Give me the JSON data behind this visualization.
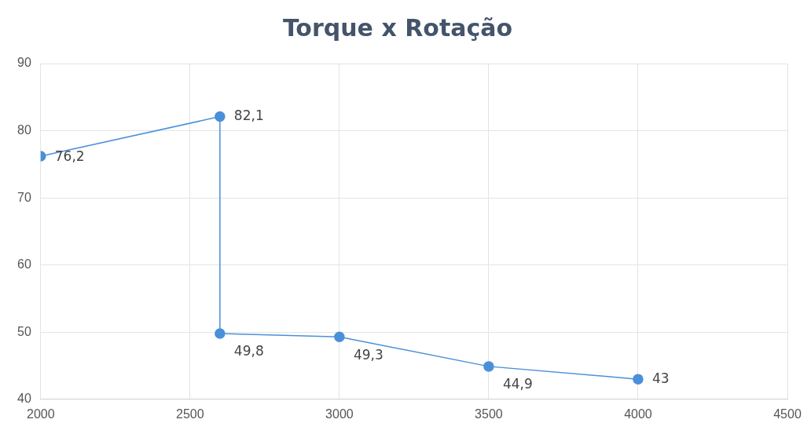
{
  "chart_data": {
    "type": "line",
    "title": "Torque x Rotação",
    "x": [
      2000,
      2600,
      2600,
      3000,
      3500,
      4000
    ],
    "series": [
      {
        "color": "#4a90d9",
        "values": [
          76.2,
          82.1,
          49.8,
          49.3,
          44.9,
          43
        ],
        "value_labels": [
          "76,2",
          "82,1",
          "49,8",
          "49,3",
          "44,9",
          "43"
        ]
      }
    ],
    "xlim": [
      2000,
      4500
    ],
    "xticks": [
      2000,
      2500,
      3000,
      3500,
      4000,
      4500
    ],
    "ylim": [
      40,
      90
    ],
    "yticks": [
      40,
      50,
      60,
      70,
      80,
      90
    ],
    "grid": true,
    "legend": false,
    "marker": "circle",
    "line_style": "solid"
  }
}
